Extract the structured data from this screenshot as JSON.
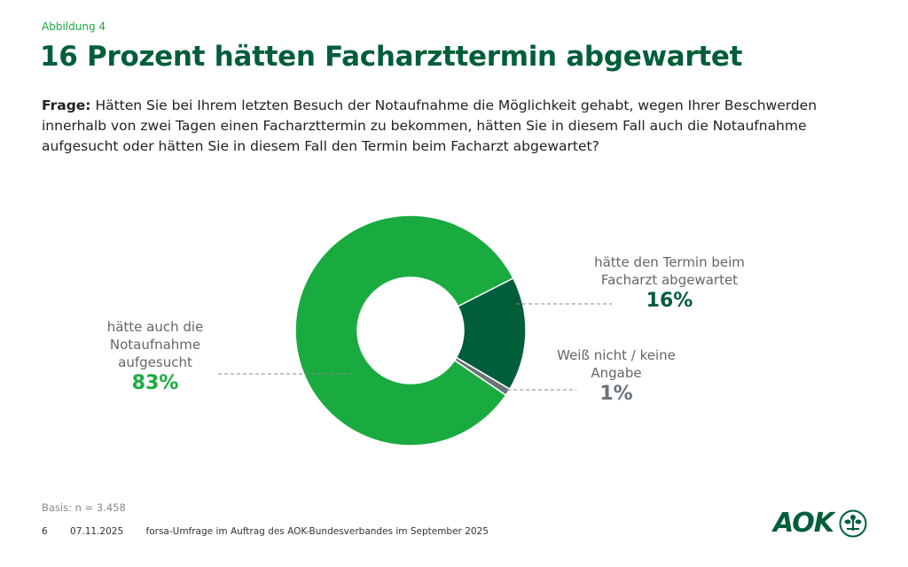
{
  "figure_label": "Abbildung 4",
  "title": "16 Prozent hätten Facharzttermin abgewartet",
  "question": {
    "prefix": "Frage:",
    "text": " Hätten Sie bei Ihrem letzten Besuch der Notaufnahme die Möglichkeit gehabt, wegen Ihrer Beschwerden innerhalb von zwei Tagen einen Facharzttermin zu bekommen, hätten Sie in diesem Fall auch die Notaufnahme aufgesucht oder hätten Sie in diesem Fall den Termin beim Facharzt abgewartet?"
  },
  "chart_data": {
    "type": "pie",
    "donut": true,
    "slices": [
      {
        "label": "hätte den Termin beim Facharzt abgewartet",
        "value": 16,
        "value_label": "16%",
        "color": "#005e3a"
      },
      {
        "label": "Weiß nicht / keine Angabe",
        "value": 1,
        "value_label": "1%",
        "color": "#6b737a"
      },
      {
        "label": "hätte auch die Notaufnahme aufgesucht",
        "value": 83,
        "value_label": "83%",
        "color": "#1aab40"
      }
    ]
  },
  "basis": "Basis: n = 3.458",
  "footer": {
    "page": "6",
    "date": "07.11.2025",
    "source": "forsa-Umfrage im Auftrag des AOK-Bundesverbandes im September 2025"
  },
  "logo": "AOK"
}
